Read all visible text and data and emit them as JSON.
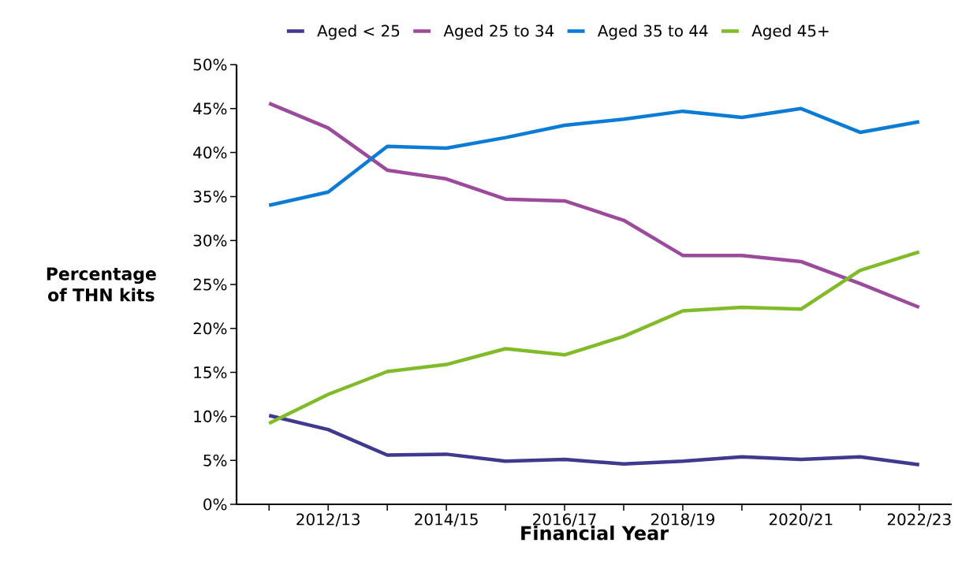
{
  "chart_data": {
    "type": "line",
    "xlabel": "Financial Year",
    "ylabel": "Percentage of THN kits",
    "categories": [
      null,
      "2012/13",
      null,
      "2014/15",
      null,
      "2016/17",
      null,
      "2018/19",
      null,
      "2020/21",
      null,
      "2022/23"
    ],
    "series": [
      {
        "name": "Aged < 25",
        "color": "#3f3a8f",
        "values": [
          10.1,
          8.5,
          5.6,
          5.7,
          4.9,
          5.1,
          4.6,
          4.9,
          5.4,
          5.1,
          5.4,
          4.5
        ]
      },
      {
        "name": "Aged 25 to 34",
        "color": "#9c4a9b",
        "values": [
          45.6,
          42.8,
          38.0,
          37.0,
          34.7,
          34.5,
          32.3,
          28.3,
          28.3,
          27.6,
          25.1,
          22.4
        ]
      },
      {
        "name": "Aged 35 to 44",
        "color": "#0b7bd6",
        "values": [
          34.0,
          35.5,
          40.7,
          40.5,
          41.7,
          43.1,
          43.8,
          44.7,
          44.0,
          45.0,
          42.3,
          43.5
        ]
      },
      {
        "name": "Aged 45+",
        "color": "#82bb29",
        "values": [
          9.2,
          12.5,
          15.1,
          15.9,
          17.7,
          17.0,
          19.1,
          22.0,
          22.4,
          22.2,
          26.6,
          28.7
        ]
      }
    ],
    "ylim": [
      0,
      50
    ],
    "yticks": [
      {
        "value": 0,
        "label": "0%"
      },
      {
        "value": 5,
        "label": "5%"
      },
      {
        "value": 10,
        "label": "10%"
      },
      {
        "value": 15,
        "label": "15%"
      },
      {
        "value": 20,
        "label": "20%"
      },
      {
        "value": 25,
        "label": "25%"
      },
      {
        "value": 30,
        "label": "30%"
      },
      {
        "value": 35,
        "label": "35%"
      },
      {
        "value": 40,
        "label": "40%"
      },
      {
        "value": 45,
        "label": "45%"
      },
      {
        "value": 50,
        "label": "50%"
      }
    ],
    "legend": "top"
  }
}
